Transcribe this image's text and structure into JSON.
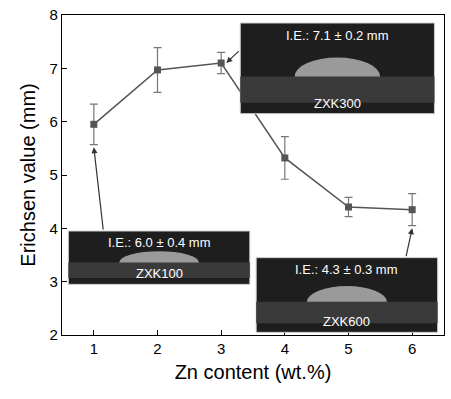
{
  "chart_data": {
    "type": "line",
    "x": [
      1,
      2,
      3,
      4,
      5,
      6
    ],
    "values": [
      5.95,
      6.97,
      7.1,
      5.32,
      4.4,
      4.35
    ],
    "errors": [
      0.38,
      0.42,
      0.2,
      0.4,
      0.18,
      0.3
    ],
    "xlabel": "Zn content (wt.%)",
    "ylabel": "Erichsen value (mm)",
    "xlim": [
      0.5,
      6.5
    ],
    "xticks": [
      1,
      2,
      3,
      4,
      5,
      6
    ],
    "ylim": [
      2,
      8
    ],
    "yticks": [
      2,
      3,
      4,
      5,
      6,
      7,
      8
    ],
    "grid": false,
    "color": "#555555",
    "marker": "square",
    "line_style": "solid",
    "annotations": [
      {
        "x": 1,
        "text": "I.E.: 6.0 ± 0.4 mm",
        "label": "ZXK100"
      },
      {
        "x": 3,
        "text": "I.E.: 7.1 ± 0.2 mm",
        "label": "ZXK300"
      },
      {
        "x": 6,
        "text": "I.E.: 4.3 ± 0.3 mm",
        "label": "ZXK600"
      }
    ]
  }
}
